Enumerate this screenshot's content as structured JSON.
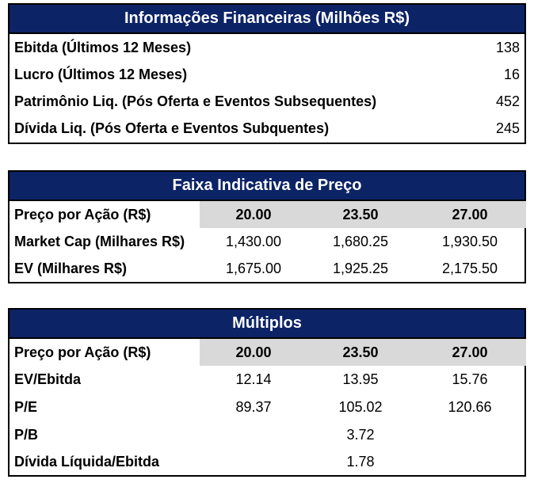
{
  "fin": {
    "title": "Informações Financeiras (Milhões R$)",
    "rows": [
      {
        "label": "Ebitda (Últimos 12 Meses)",
        "value": "138"
      },
      {
        "label": "Lucro (Últimos 12 Meses)",
        "value": "16"
      },
      {
        "label": "Patrimônio Liq. (Pós Oferta e Eventos Subsequentes)",
        "value": "452"
      },
      {
        "label": "Dívida Liq. (Pós Oferta e Eventos Subquentes)",
        "value": "245"
      }
    ]
  },
  "faixa": {
    "title": "Faixa Indicativa de Preço",
    "price_label": "Preço por Ação (R$)",
    "prices": [
      "20.00",
      "23.50",
      "27.00"
    ],
    "rows": [
      {
        "label": "Market Cap (Milhares R$)",
        "values": [
          "1,430.00",
          "1,680.25",
          "1,930.50"
        ]
      },
      {
        "label": "EV (Milhares R$)",
        "values": [
          "1,675.00",
          "1,925.25",
          "2,175.50"
        ]
      }
    ]
  },
  "multiplos": {
    "title": "Múltiplos",
    "price_label": "Preço por Ação (R$)",
    "prices": [
      "20.00",
      "23.50",
      "27.00"
    ],
    "rows": [
      {
        "label": "EV/Ebitda",
        "values": [
          "12.14",
          "13.95",
          "15.76"
        ]
      },
      {
        "label": "P/E",
        "values": [
          "89.37",
          "105.02",
          "120.66"
        ]
      },
      {
        "label": "P/B",
        "values": [
          "",
          "3.72",
          ""
        ]
      },
      {
        "label": "Dívida Líquida/Ebitda",
        "values": [
          "",
          "1.78",
          ""
        ]
      }
    ]
  }
}
